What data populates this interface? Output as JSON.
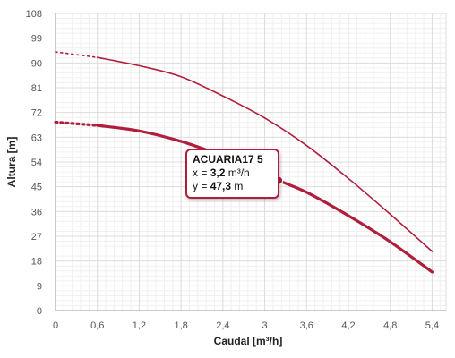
{
  "chart_data": {
    "type": "line",
    "xlabel": "Caudal [m³/h]",
    "ylabel": "Altura [m]",
    "xlim": [
      0,
      5.6
    ],
    "ylim": [
      0,
      108
    ],
    "x_ticks": [
      "0",
      "0,6",
      "1,2",
      "1,8",
      "2,4",
      "3",
      "3,6",
      "4,2",
      "4,8",
      "5,4"
    ],
    "x_tick_values": [
      0,
      0.6,
      1.2,
      1.8,
      2.4,
      3.0,
      3.6,
      4.2,
      4.8,
      5.4
    ],
    "y_ticks": [
      "0",
      "9",
      "18",
      "27",
      "36",
      "45",
      "54",
      "63",
      "72",
      "81",
      "90",
      "99",
      "108"
    ],
    "y_tick_values": [
      0,
      9,
      18,
      27,
      36,
      45,
      54,
      63,
      72,
      81,
      90,
      99,
      108
    ],
    "grid": true,
    "series": [
      {
        "color": "#b01e3c",
        "extrapolated": {
          "x": [
            0,
            0.6
          ],
          "y": [
            94,
            92
          ]
        },
        "x": [
          0.6,
          1.2,
          1.8,
          2.4,
          3.0,
          3.6,
          4.2,
          4.8,
          5.4
        ],
        "y": [
          92,
          89,
          85,
          78,
          70,
          60,
          48,
          35,
          21.5
        ]
      },
      {
        "color": "#b01e3c",
        "selected": true,
        "extrapolated": {
          "x": [
            0,
            0.6
          ],
          "y": [
            68.5,
            67.3
          ]
        },
        "x": [
          0.6,
          1.2,
          1.8,
          2.4,
          3.0,
          3.2,
          3.6,
          4.2,
          4.8,
          5.4
        ],
        "y": [
          67.3,
          65.3,
          61.5,
          56.2,
          50.2,
          47.3,
          43,
          34.5,
          25,
          14
        ]
      }
    ],
    "highlight_point": {
      "x": 3.2,
      "y": 47.3,
      "color": "#b01e3c"
    }
  },
  "tooltip": {
    "title": "ACUARIA17 5",
    "x_label": "x =",
    "x_value": "3,2",
    "x_unit": "m³/h",
    "y_label": "y =",
    "y_value": "47,3",
    "y_unit": "m"
  }
}
